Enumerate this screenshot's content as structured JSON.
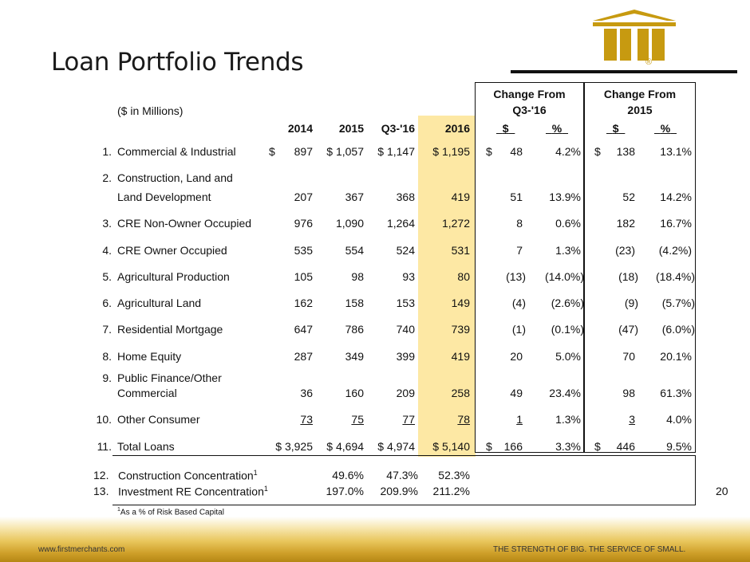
{
  "slide": {
    "title": "Loan Portfolio Trends",
    "page_number": "20",
    "footer_url": "www.firstmerchants.com",
    "footer_tagline": "THE STRENGTH OF BIG. THE SERVICE OF SMALL.",
    "logo_mark": "®",
    "footnote": "As a % of Risk Based Capital",
    "footnote_ref": "1"
  },
  "table": {
    "units_label": "($ in Millions)",
    "group1_line1": "Change From",
    "group1_line2": "Q3-'16",
    "group2_line1": "Change From",
    "group2_line2": "2015",
    "columns": [
      "2014",
      "2015",
      "Q3-'16",
      "2016"
    ],
    "sub_dollar": "$",
    "sub_pct": "%",
    "rows": [
      {
        "num": "1.",
        "label": "Commercial & Industrial",
        "c2014": "897",
        "c2015": "1,057",
        "cq3": "1,147",
        "c2016": "1,195",
        "d1": "48",
        "p1": "4.2%",
        "d2": "138",
        "p2": "13.1%",
        "dollar": "$"
      },
      {
        "num": "2.",
        "label1": "Construction, Land and",
        "label2": "Land Development",
        "c2014": "207",
        "c2015": "367",
        "cq3": "368",
        "c2016": "419",
        "d1": "51",
        "p1": "13.9%",
        "d2": "52",
        "p2": "14.2%"
      },
      {
        "num": "3.",
        "label": "CRE Non-Owner Occupied",
        "c2014": "976",
        "c2015": "1,090",
        "cq3": "1,264",
        "c2016": "1,272",
        "d1": "8",
        "p1": "0.6%",
        "d2": "182",
        "p2": "16.7%"
      },
      {
        "num": "4.",
        "label": "CRE Owner Occupied",
        "c2014": "535",
        "c2015": "554",
        "cq3": "524",
        "c2016": "531",
        "d1": "7",
        "p1": "1.3%",
        "d2": "(23)",
        "p2": "(4.2%)"
      },
      {
        "num": "5.",
        "label": "Agricultural Production",
        "c2014": "105",
        "c2015": "98",
        "cq3": "93",
        "c2016": "80",
        "d1": "(13)",
        "p1": "(14.0%)",
        "d2": "(18)",
        "p2": "(18.4%)"
      },
      {
        "num": "6.",
        "label": "Agricultural Land",
        "c2014": "162",
        "c2015": "158",
        "cq3": "153",
        "c2016": "149",
        "d1": "(4)",
        "p1": "(2.6%)",
        "d2": "(9)",
        "p2": "(5.7%)"
      },
      {
        "num": "7.",
        "label": "Residential Mortgage",
        "c2014": "647",
        "c2015": "786",
        "cq3": "740",
        "c2016": "739",
        "d1": "(1)",
        "p1": "(0.1%)",
        "d2": "(47)",
        "p2": "(6.0%)"
      },
      {
        "num": "8.",
        "label": "Home Equity",
        "c2014": "287",
        "c2015": "349",
        "cq3": "399",
        "c2016": "419",
        "d1": "20",
        "p1": "5.0%",
        "d2": "70",
        "p2": "20.1%"
      },
      {
        "num": "9.",
        "label1": "Public Finance/Other",
        "label2": "Commercial",
        "c2014": "36",
        "c2015": "160",
        "cq3": "209",
        "c2016": "258",
        "d1": "49",
        "p1": "23.4%",
        "d2": "98",
        "p2": "61.3%"
      },
      {
        "num": "10.",
        "label": "Other Consumer",
        "c2014": "73",
        "c2015": "75",
        "cq3": "77",
        "c2016": "78",
        "d1": "1",
        "p1": "1.3%",
        "d2": "3",
        "p2": "4.0%"
      },
      {
        "num": "11.",
        "label": "Total Loans",
        "c2014": "$ 3,925",
        "c2015": "$ 4,694",
        "cq3": "$ 4,974",
        "c2016": "$ 5,140",
        "d1": "166",
        "p1": "3.3%",
        "d2": "446",
        "p2": "9.5%",
        "dollar": "$"
      }
    ],
    "row1_prefix": {
      "c2014": "$",
      "c2015": "$ 1,057",
      "cq3": "$ 1,147",
      "c2016": "$ 1,195"
    },
    "concentration": [
      {
        "num": "12.",
        "label": "Construction Concentration",
        "ref": "1",
        "c2015": "49.6%",
        "cq3": "47.3%",
        "c2016": "52.3%"
      },
      {
        "num": "13.",
        "label": "Investment RE Concentration",
        "ref": "1",
        "c2015": "197.0%",
        "cq3": "209.9%",
        "c2016": "211.2%"
      }
    ]
  },
  "colors": {
    "accent_gold": "#c79a10",
    "highlight": "#fde8a4"
  }
}
